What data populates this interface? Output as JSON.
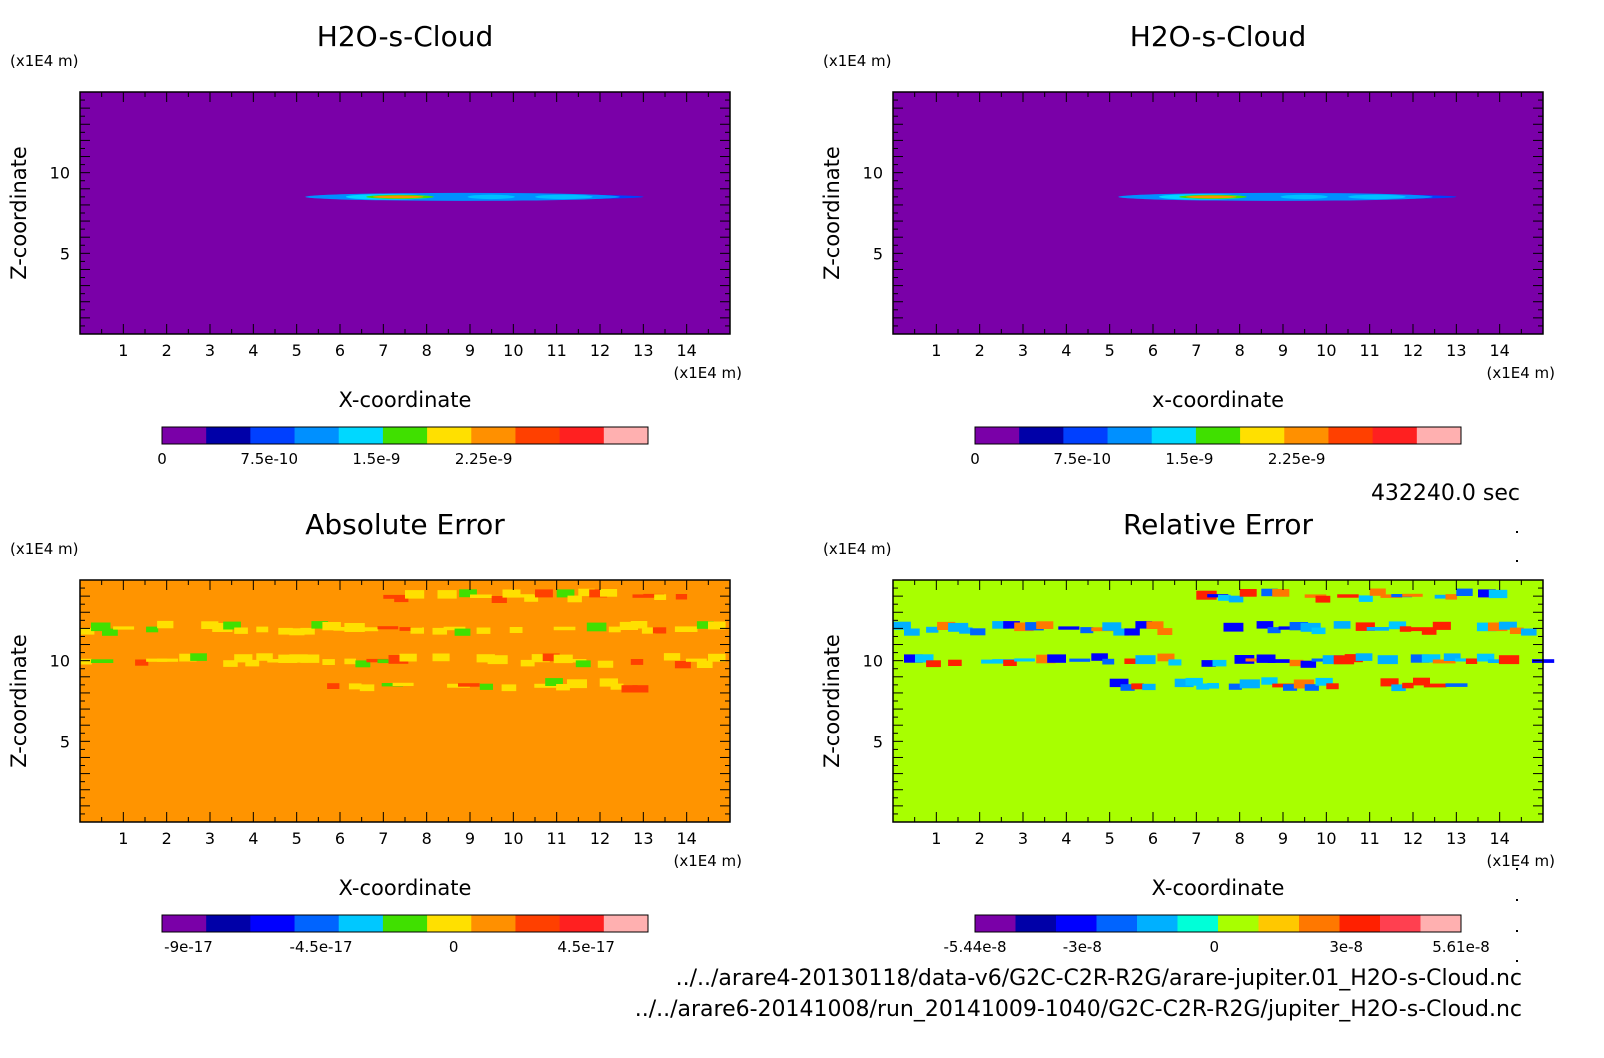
{
  "time_label": "432240.0 sec",
  "file_paths": [
    "../../arare4-20130118/data-v6/G2C-C2R-R2G/arare-jupiter.01_H2O-s-Cloud.nc",
    "../../arare6-20141008/run_20141009-1040/G2C-C2R-R2G/jupiter_H2O-s-Cloud.nc"
  ],
  "chart_data": [
    {
      "type": "heatmap",
      "title": "H2O-s-Cloud",
      "xlabel": "X-coordinate",
      "ylabel": "Z-coordinate",
      "x_unit": "(x1E4 m)",
      "y_unit": "(x1E4 m)",
      "xlim": [
        0,
        15
      ],
      "ylim": [
        0,
        15
      ],
      "x_ticks": [
        1,
        2,
        3,
        4,
        5,
        6,
        7,
        8,
        9,
        10,
        11,
        12,
        13,
        14
      ],
      "y_ticks": [
        5,
        10
      ],
      "background_color": "#7a00a8",
      "features": [
        {
          "z": 8.5,
          "x_range": [
            5.2,
            13.0
          ],
          "note": "thin cloud layer, max near x=6-8"
        }
      ],
      "colorbar": {
        "colors": [
          "#7a00a8",
          "#0000a8",
          "#0040ff",
          "#0090ff",
          "#00d8ff",
          "#40e000",
          "#ffe000",
          "#ff9000",
          "#ff4000",
          "#ff2020",
          "#ffb0b0"
        ],
        "tick_labels": [
          "0",
          "7.5e-10",
          "1.5e-9",
          "2.25e-9"
        ],
        "tick_values": [
          0,
          7.5e-10,
          1.5e-09,
          2.25e-09
        ],
        "range": [
          0,
          3.4e-09
        ]
      }
    },
    {
      "type": "heatmap",
      "title": "H2O-s-Cloud",
      "xlabel": "x-coordinate",
      "ylabel": "Z-coordinate",
      "x_unit": "(x1E4 m)",
      "y_unit": "(x1E4 m)",
      "xlim": [
        0,
        15
      ],
      "ylim": [
        0,
        15
      ],
      "x_ticks": [
        1,
        2,
        3,
        4,
        5,
        6,
        7,
        8,
        9,
        10,
        11,
        12,
        13,
        14
      ],
      "y_ticks": [
        5,
        10
      ],
      "background_color": "#7a00a8",
      "features": [
        {
          "z": 8.5,
          "x_range": [
            5.2,
            13.0
          ],
          "note": "thin cloud layer, max near x=6-8"
        }
      ],
      "colorbar": {
        "colors": [
          "#7a00a8",
          "#0000a8",
          "#0040ff",
          "#0090ff",
          "#00d8ff",
          "#40e000",
          "#ffe000",
          "#ff9000",
          "#ff4000",
          "#ff2020",
          "#ffb0b0"
        ],
        "tick_labels": [
          "0",
          "7.5e-10",
          "1.5e-9",
          "2.25e-9"
        ],
        "tick_values": [
          0,
          7.5e-10,
          1.5e-09,
          2.25e-09
        ],
        "range": [
          0,
          3.4e-09
        ]
      }
    },
    {
      "type": "heatmap",
      "title": "Absolute Error",
      "xlabel": "X-coordinate",
      "ylabel": "Z-coordinate",
      "x_unit": "(x1E4 m)",
      "y_unit": "(x1E4 m)",
      "xlim": [
        0,
        15
      ],
      "ylim": [
        0,
        15
      ],
      "x_ticks": [
        1,
        2,
        3,
        4,
        5,
        6,
        7,
        8,
        9,
        10,
        11,
        12,
        13,
        14
      ],
      "y_ticks": [
        5,
        10
      ],
      "background_color": "#ff9400",
      "features": [
        {
          "z": 14.0,
          "x_range": [
            7.0,
            14.0
          ],
          "note": "sparse yellow patches"
        },
        {
          "z": 12.0,
          "x_range": [
            0.0,
            15.0
          ],
          "note": "yellow patches"
        },
        {
          "z": 10.0,
          "x_range": [
            0.0,
            15.0
          ],
          "note": "yellow patches"
        },
        {
          "z": 8.5,
          "x_range": [
            5.2,
            13.0
          ],
          "note": "mixed yellow/green/red"
        }
      ],
      "colorbar": {
        "colors": [
          "#7a00a8",
          "#0000a8",
          "#0000ff",
          "#0064ff",
          "#00c8ff",
          "#40e000",
          "#ffe000",
          "#ff9000",
          "#ff4000",
          "#ff2020",
          "#ffb0b0"
        ],
        "tick_labels": [
          "-9e-17",
          "-4.5e-17",
          "0",
          "4.5e-17"
        ],
        "tick_values": [
          -9e-17,
          -4.5e-17,
          0,
          4.5e-17
        ],
        "range": [
          -9.9e-17,
          6.6e-17
        ]
      }
    },
    {
      "type": "heatmap",
      "title": "Relative Error",
      "xlabel": "X-coordinate",
      "ylabel": "Z-coordinate",
      "x_unit": "(x1E4 m)",
      "y_unit": "(x1E4 m)",
      "xlim": [
        0,
        15
      ],
      "ylim": [
        0,
        15
      ],
      "x_ticks": [
        1,
        2,
        3,
        4,
        5,
        6,
        7,
        8,
        9,
        10,
        11,
        12,
        13,
        14
      ],
      "y_ticks": [
        5,
        10
      ],
      "background_color": "#a8ff00",
      "features": [
        {
          "z": 14.0,
          "x_range": [
            7.0,
            14.0
          ],
          "note": "sparse cyan patches"
        },
        {
          "z": 12.0,
          "x_range": [
            0.0,
            15.0
          ],
          "note": "mixed blue/red"
        },
        {
          "z": 10.0,
          "x_range": [
            0.0,
            15.0
          ],
          "note": "blue patches"
        },
        {
          "z": 8.5,
          "x_range": [
            5.0,
            13.0
          ],
          "note": "mixed blue/red"
        }
      ],
      "colorbar": {
        "colors": [
          "#7a00a8",
          "#0000a8",
          "#0000ff",
          "#0064ff",
          "#00b0ff",
          "#00ffd8",
          "#a8ff00",
          "#ffc800",
          "#ff7800",
          "#ff2000",
          "#ff4050",
          "#ffb0b0"
        ],
        "tick_labels": [
          "-5.44e-8",
          "-3e-8",
          "0",
          "3e-8",
          "5.61e-8"
        ],
        "tick_values": [
          -5.44e-08,
          -3e-08,
          0,
          3e-08,
          5.61e-08
        ],
        "range": [
          -5.44e-08,
          5.61e-08
        ]
      }
    }
  ]
}
